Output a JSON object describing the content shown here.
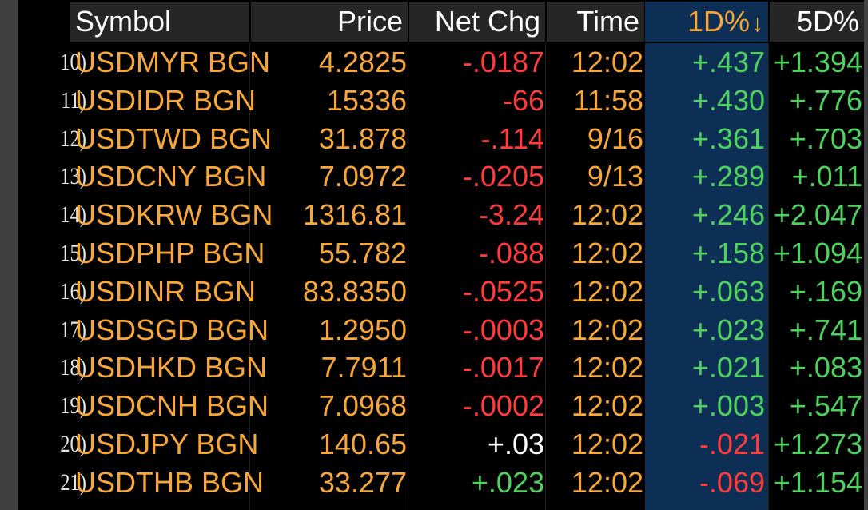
{
  "columns": {
    "symbol": "Symbol",
    "price": "Price",
    "net_chg": "Net Chg",
    "time": "Time",
    "d1": "1D%",
    "d1_sort_icon": "arrow-down",
    "d5": "5D%"
  },
  "colors": {
    "symbol": "#f7a637",
    "negative": "#ff3b3b",
    "positive": "#4dd35d",
    "sort_column_bg": "#0d2e55",
    "header_bg": "#262626"
  },
  "rows": [
    {
      "num": "10)",
      "symbol": "USDMYR BGN",
      "price": "4.2825",
      "chg": "-.0187",
      "chg_color": "neg",
      "time": "12:02",
      "d1": "+.437",
      "d1_color": "pos",
      "d5": "+1.394"
    },
    {
      "num": "11)",
      "symbol": "USDIDR BGN",
      "price": "15336",
      "chg": "-66",
      "chg_color": "neg",
      "time": "11:58",
      "d1": "+.430",
      "d1_color": "pos",
      "d5": "+.776"
    },
    {
      "num": "12)",
      "symbol": "USDTWD BGN",
      "price": "31.878",
      "chg": "-.114",
      "chg_color": "neg",
      "time": "9/16",
      "d1": "+.361",
      "d1_color": "pos",
      "d5": "+.703"
    },
    {
      "num": "13)",
      "symbol": "USDCNY BGN",
      "price": "7.0972",
      "chg": "-.0205",
      "chg_color": "neg",
      "time": "9/13",
      "d1": "+.289",
      "d1_color": "pos",
      "d5": "+.011"
    },
    {
      "num": "14)",
      "symbol": "USDKRW BGN",
      "price": "1316.81",
      "chg": "-3.24",
      "chg_color": "neg",
      "time": "12:02",
      "d1": "+.246",
      "d1_color": "pos",
      "d5": "+2.047"
    },
    {
      "num": "15)",
      "symbol": "USDPHP BGN",
      "price": "55.782",
      "chg": "-.088",
      "chg_color": "neg",
      "time": "12:02",
      "d1": "+.158",
      "d1_color": "pos",
      "d5": "+1.094"
    },
    {
      "num": "16)",
      "symbol": "USDINR BGN",
      "price": "83.8350",
      "chg": "-.0525",
      "chg_color": "neg",
      "time": "12:02",
      "d1": "+.063",
      "d1_color": "pos",
      "d5": "+.169"
    },
    {
      "num": "17)",
      "symbol": "USDSGD BGN",
      "price": "1.2950",
      "chg": "-.0003",
      "chg_color": "neg",
      "time": "12:02",
      "d1": "+.023",
      "d1_color": "pos",
      "d5": "+.741"
    },
    {
      "num": "18)",
      "symbol": "USDHKD BGN",
      "price": "7.7911",
      "chg": "-.0017",
      "chg_color": "neg",
      "time": "12:02",
      "d1": "+.021",
      "d1_color": "pos",
      "d5": "+.083"
    },
    {
      "num": "19)",
      "symbol": "USDCNH BGN",
      "price": "7.0968",
      "chg": "-.0002",
      "chg_color": "neg",
      "time": "12:02",
      "d1": "+.003",
      "d1_color": "pos",
      "d5": "+.547"
    },
    {
      "num": "20)",
      "symbol": "USDJPY BGN",
      "price": "140.65",
      "chg": "+.03",
      "chg_color": "white",
      "time": "12:02",
      "d1": "-.021",
      "d1_color": "neg",
      "d5": "+1.273"
    },
    {
      "num": "21)",
      "symbol": "USDTHB BGN",
      "price": "33.277",
      "chg": "+.023",
      "chg_color": "pos",
      "time": "12:02",
      "d1": "-.069",
      "d1_color": "neg",
      "d5": "+1.154"
    }
  ]
}
